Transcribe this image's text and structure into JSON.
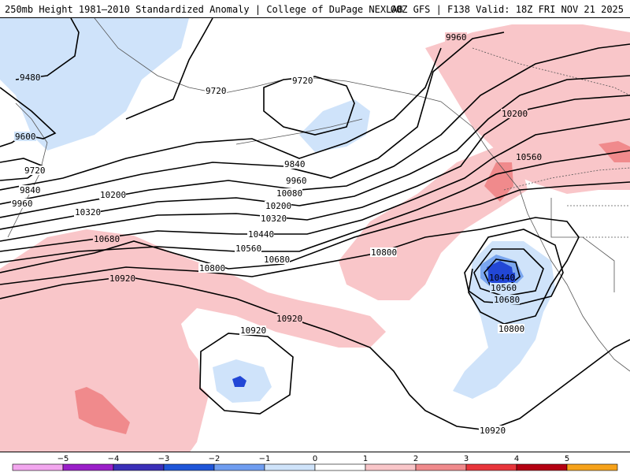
{
  "header": {
    "left_title": "250mb Height 1981–2010 Standardized Anomaly | College of DuPage NEXLAB",
    "right_title": "00Z GFS | F138 Valid: 18Z FRI NOV 21 2025"
  },
  "colors": {
    "pos1": "#f9c6c9",
    "pos2": "#f08a8c",
    "pos3": "#e8353b",
    "neg1": "#cfe3fa",
    "neg2": "#7aa6ef",
    "neg3": "#2247d6",
    "contour": "#000000",
    "coast": "#555555"
  },
  "contours": {
    "labels": [
      {
        "id": "c9480",
        "text": "9480"
      },
      {
        "id": "c9600",
        "text": "9600"
      },
      {
        "id": "c9720a",
        "text": "9720"
      },
      {
        "id": "c9720b",
        "text": "9720"
      },
      {
        "id": "c9720c",
        "text": "9720"
      },
      {
        "id": "c9840a",
        "text": "9840"
      },
      {
        "id": "c9840b",
        "text": "9840"
      },
      {
        "id": "c9960a",
        "text": "9960"
      },
      {
        "id": "c9960b",
        "text": "9960"
      },
      {
        "id": "c9960c",
        "text": "9960"
      },
      {
        "id": "c10080",
        "text": "10080"
      },
      {
        "id": "c10200a",
        "text": "10200"
      },
      {
        "id": "c10200b",
        "text": "10200"
      },
      {
        "id": "c10200c",
        "text": "10200"
      },
      {
        "id": "c10320a",
        "text": "10320"
      },
      {
        "id": "c10320b",
        "text": "10320"
      },
      {
        "id": "c10440a",
        "text": "10440"
      },
      {
        "id": "c10440b",
        "text": "10440"
      },
      {
        "id": "c10560a",
        "text": "10560"
      },
      {
        "id": "c10560b",
        "text": "10560"
      },
      {
        "id": "c10560c",
        "text": "10560"
      },
      {
        "id": "c10680a",
        "text": "10680"
      },
      {
        "id": "c10680b",
        "text": "10680"
      },
      {
        "id": "c10680c",
        "text": "10680"
      },
      {
        "id": "c10800a",
        "text": "10800"
      },
      {
        "id": "c10800b",
        "text": "10800"
      },
      {
        "id": "c10800c",
        "text": "10800"
      },
      {
        "id": "c10920a",
        "text": "10920"
      },
      {
        "id": "c10920b",
        "text": "10920"
      },
      {
        "id": "c10920c",
        "text": "10920"
      },
      {
        "id": "c10920d",
        "text": "10920"
      }
    ]
  },
  "colorbar": {
    "ticks": [
      "−5",
      "−4",
      "−3",
      "−2",
      "−1",
      "0",
      "1",
      "2",
      "3",
      "4",
      "5"
    ],
    "segments": [
      "#f2a6ee",
      "#9a1fc9",
      "#3a2fb8",
      "#1f55d8",
      "#6f9df0",
      "#cfe3fa",
      "#ffffff",
      "#f9c6c9",
      "#f08a8c",
      "#e8353b",
      "#b40012",
      "#f6a21a"
    ]
  }
}
